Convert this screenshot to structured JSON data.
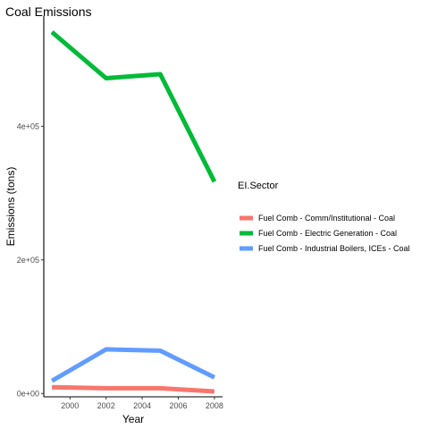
{
  "chart_data": {
    "type": "line",
    "title": "Coal Emissions",
    "xlabel": "Year",
    "ylabel": "Emissions (tons)",
    "x": [
      1999,
      2002,
      2005,
      2008
    ],
    "xlim": [
      1998.55,
      2008.45
    ],
    "ylim": [
      -5000,
      565000
    ],
    "xticks": [
      2000,
      2002,
      2004,
      2006,
      2008
    ],
    "xtick_labels": [
      "2000",
      "2002",
      "2004",
      "2006",
      "2008"
    ],
    "yticks": [
      0,
      200000,
      400000
    ],
    "ytick_labels": [
      "0e+00",
      "2e+05",
      "4e+05"
    ],
    "grid": false,
    "legend": {
      "title": "EI.Sector",
      "placement": "right"
    },
    "series": [
      {
        "name": "Fuel Comb - Comm/Institutional - Coal",
        "color": "#F8766D",
        "values": [
          9300,
          7900,
          7800,
          3000
        ]
      },
      {
        "name": "Fuel Comb - Electric Generation - Coal",
        "color": "#00BA38",
        "values": [
          541000,
          472000,
          478000,
          317000
        ]
      },
      {
        "name": "Fuel Comb - Industrial Boilers, ICEs - Coal",
        "color": "#619CFF",
        "values": [
          19000,
          66000,
          64000,
          24000
        ]
      }
    ]
  }
}
